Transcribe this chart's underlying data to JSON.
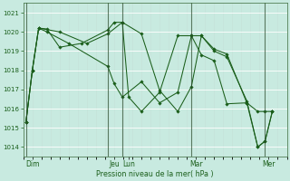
{
  "xlabel": "Pression niveau de la mer( hPa )",
  "bg_color": "#c8eae0",
  "grid_color": "#b0d8cc",
  "line_color": "#1a5e1a",
  "vline_color": "#2a4a2a",
  "ylim": [
    1013.5,
    1021.5
  ],
  "yticks": [
    1014,
    1015,
    1016,
    1017,
    1018,
    1019,
    1020,
    1021
  ],
  "xlim": [
    0,
    14.5
  ],
  "day_positions": [
    0.5,
    5.0,
    5.8,
    9.5,
    13.5
  ],
  "day_labels": [
    "Dim",
    "Jeu",
    "Lun",
    "Mar",
    "Mer"
  ],
  "vline_positions": [
    0.15,
    4.65,
    5.45,
    9.25,
    13.3
  ],
  "series1_x": [
    0.15,
    0.5,
    0.85,
    1.3,
    2.0,
    3.2,
    4.65,
    5.0,
    5.45,
    5.8,
    6.5,
    7.5,
    8.5,
    9.25,
    9.8,
    10.5,
    11.2,
    12.3,
    12.9,
    13.3,
    13.7
  ],
  "series1_y": [
    1015.3,
    1018.0,
    1020.2,
    1020.15,
    1019.2,
    1019.4,
    1020.1,
    1020.5,
    1020.5,
    1016.6,
    1015.85,
    1016.85,
    1019.8,
    1019.8,
    1019.8,
    1019.1,
    1018.85,
    1016.3,
    1015.85,
    1015.85,
    1015.85
  ],
  "series2_x": [
    0.15,
    0.5,
    0.85,
    1.3,
    2.5,
    4.65,
    5.0,
    5.45,
    6.5,
    7.5,
    8.5,
    9.25,
    9.8,
    10.5,
    11.2,
    12.3,
    12.9,
    13.3,
    13.7
  ],
  "series2_y": [
    1015.3,
    1018.0,
    1020.2,
    1020.0,
    1019.4,
    1018.2,
    1017.3,
    1016.6,
    1017.4,
    1016.3,
    1016.85,
    1019.8,
    1018.8,
    1018.5,
    1016.25,
    1016.3,
    1014.0,
    1014.3,
    1015.85
  ],
  "series3_x": [
    0.15,
    0.5,
    0.85,
    2.0,
    3.5,
    4.65,
    5.45,
    6.5,
    7.5,
    8.5,
    9.25,
    9.8,
    10.5,
    11.2,
    12.3,
    12.9,
    13.3,
    13.7
  ],
  "series3_y": [
    1015.3,
    1018.0,
    1020.2,
    1020.0,
    1019.4,
    1019.9,
    1020.5,
    1019.9,
    1016.95,
    1015.85,
    1017.15,
    1019.8,
    1019.0,
    1018.7,
    1016.4,
    1014.0,
    1014.3,
    1015.85
  ]
}
